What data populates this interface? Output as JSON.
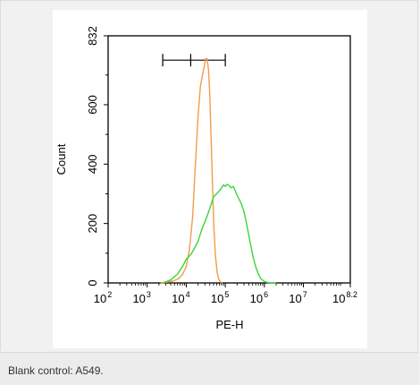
{
  "chart_data": {
    "type": "line",
    "xlabel": "PE-H",
    "ylabel": "Count",
    "x_scale": "log",
    "xlim": [
      100,
      158489319
    ],
    "ylim": [
      0,
      832
    ],
    "x_ticks": [
      {
        "value": 100,
        "base": "10",
        "exp": "2"
      },
      {
        "value": 1000,
        "base": "10",
        "exp": "3"
      },
      {
        "value": 10000,
        "base": "10",
        "exp": "4"
      },
      {
        "value": 100000,
        "base": "10",
        "exp": "5"
      },
      {
        "value": 1000000,
        "base": "10",
        "exp": "6"
      },
      {
        "value": 10000000,
        "base": "10",
        "exp": "7"
      },
      {
        "value": 158489319,
        "base": "10",
        "exp": "8.2"
      }
    ],
    "y_ticks": [
      "0",
      "200",
      "400",
      "600",
      "832"
    ],
    "gate": {
      "x_start": 2500,
      "x_mid": 13000,
      "x_end": 100000,
      "y": 750
    },
    "series": [
      {
        "color": "#f39b4a",
        "x": [
          2200,
          3000,
          4500,
          6300,
          8000,
          10000,
          12000,
          14500,
          17000,
          20000,
          23000,
          26000,
          29000,
          31500,
          34000,
          37000,
          40000,
          43000,
          47000,
          51000,
          56000,
          62000,
          69000,
          76000,
          85000
        ],
        "y": [
          0,
          2,
          6,
          14,
          28,
          55,
          110,
          220,
          390,
          560,
          660,
          700,
          730,
          755,
          755,
          720,
          640,
          500,
          330,
          190,
          90,
          35,
          10,
          3,
          0
        ]
      },
      {
        "color": "#39d639",
        "x": [
          2500,
          4000,
          6000,
          8000,
          10000,
          13000,
          16000,
          20000,
          25000,
          32000,
          40000,
          50000,
          60000,
          70000,
          80000,
          90000,
          100000,
          110000,
          125000,
          140000,
          160000,
          180000,
          200000,
          230000,
          260000,
          300000,
          350000,
          400000,
          460000,
          520000,
          600000,
          700000,
          800000,
          950000,
          1100000,
          1300000,
          1600000,
          2000000
        ],
        "y": [
          0,
          10,
          30,
          55,
          80,
          95,
          115,
          140,
          180,
          215,
          250,
          290,
          300,
          310,
          320,
          330,
          325,
          332,
          328,
          320,
          325,
          310,
          295,
          280,
          265,
          240,
          200,
          160,
          120,
          85,
          55,
          30,
          15,
          7,
          3,
          1,
          0,
          0
        ]
      }
    ]
  },
  "caption": "Blank control: A549."
}
